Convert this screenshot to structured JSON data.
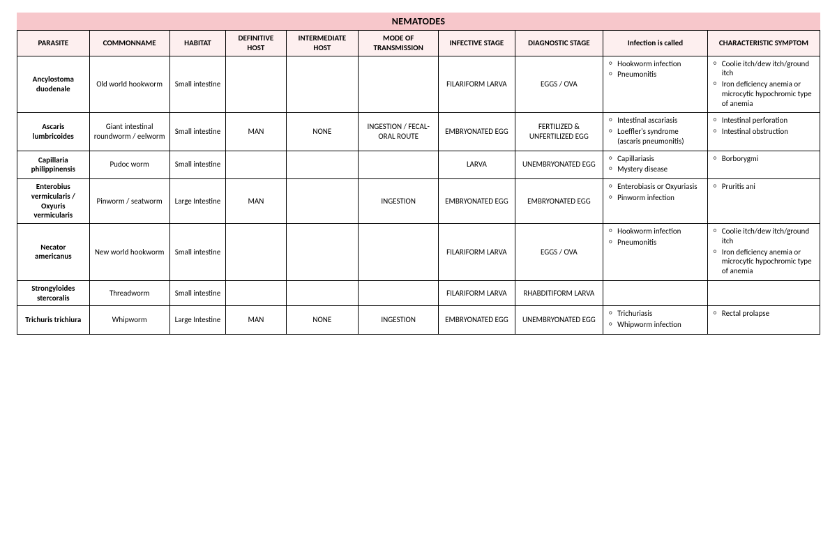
{
  "title": "NEMATODES",
  "columns": [
    "PARASITE",
    "COMMONNAME",
    "HABITAT",
    "DEFINITIVE HOST",
    "INTERMEDIATE HOST",
    "MODE OF TRANSMISSION",
    "INFECTIVE STAGE",
    "DIAGNOSTIC STAGE",
    "Infection is called",
    "CHARACTERISTIC SYMPTOM"
  ],
  "col_widths_pct": [
    9,
    10,
    7,
    7.5,
    9,
    10,
    9.5,
    11,
    13,
    14
  ],
  "styling": {
    "title_bg": "#f7c7cb",
    "header_bg": "#fdefef",
    "border_color": "#000000",
    "body_bg": "#ffffff",
    "font_family": "Calibri",
    "title_fontsize_pt": 14,
    "cell_fontsize_pt": 11,
    "bullet_glyph": "○"
  },
  "rows": [
    {
      "parasite": "Ancylostoma duodenale",
      "common": "Old world hookworm",
      "habitat": "Small intestine",
      "def_host": "",
      "int_host": "",
      "mode": "",
      "infective": "FILARIFORM LARVA",
      "diagnostic": "EGGS / OVA",
      "infection": [
        "Hookworm infection",
        "Pneumonitis"
      ],
      "symptom": [
        "Coolie itch/dew itch/ground itch",
        "Iron deficiency anemia or microcytic hypochromic type of anemia"
      ]
    },
    {
      "parasite": "Ascaris lumbricoides",
      "common": "Giant intestinal roundworm / eelworm",
      "habitat": "Small intestine",
      "def_host": "MAN",
      "int_host": "NONE",
      "mode": "INGESTION / FECAL-ORAL ROUTE",
      "infective": "EMBRYONATED EGG",
      "diagnostic": "FERTILIZED & UNFERTILIZED EGG",
      "infection": [
        "Intestinal ascariasis",
        "Loeffler's syndrome (ascaris pneumonitis)"
      ],
      "symptom": [
        "Intestinal perforation",
        "Intestinal obstruction"
      ]
    },
    {
      "parasite": "Capillaria philippinensis",
      "common": "Pudoc worm",
      "habitat": "Small intestine",
      "def_host": "",
      "int_host": "",
      "mode": "",
      "infective": "LARVA",
      "diagnostic": "UNEMBRYONATED EGG",
      "infection": [
        "Capillariasis",
        "Mystery disease"
      ],
      "symptom": [
        "Borborygmi"
      ]
    },
    {
      "parasite": "Enterobius vermicularis / Oxyuris vermicularis",
      "common": "Pinworm / seatworm",
      "habitat": "Large Intestine",
      "def_host": "MAN",
      "int_host": "",
      "mode": "INGESTION",
      "infective": "EMBRYONATED EGG",
      "diagnostic": "EMBRYONATED EGG",
      "infection": [
        "Enterobiasis or Oxyuriasis",
        "Pinworm infection"
      ],
      "symptom": [
        "Pruritis ani"
      ]
    },
    {
      "parasite": "Necator americanus",
      "common": "New world hookworm",
      "habitat": "Small intestine",
      "def_host": "",
      "int_host": "",
      "mode": "",
      "infective": "FILARIFORM LARVA",
      "diagnostic": "EGGS / OVA",
      "infection": [
        "Hookworm infection",
        "Pneumonitis"
      ],
      "symptom": [
        "Coolie itch/dew itch/ground itch",
        "Iron deficiency anemia or microcytic hypochromic type of anemia"
      ]
    },
    {
      "parasite": "Strongyloides stercoralis",
      "common": "Threadworm",
      "habitat": "Small intestine",
      "def_host": "",
      "int_host": "",
      "mode": "",
      "infective": "FILARIFORM LARVA",
      "diagnostic": "RHABDITIFORM LARVA",
      "infection": [],
      "symptom": []
    },
    {
      "parasite": "Trichuris trichiura",
      "common": "Whipworm",
      "habitat": "Large Intestine",
      "def_host": "MAN",
      "int_host": "NONE",
      "mode": "INGESTION",
      "infective": "EMBRYONATED EGG",
      "diagnostic": "UNEMBRYONATED EGG",
      "infection": [
        "Trichuriasis",
        "Whipworm infection"
      ],
      "symptom": [
        "Rectal prolapse"
      ]
    }
  ]
}
